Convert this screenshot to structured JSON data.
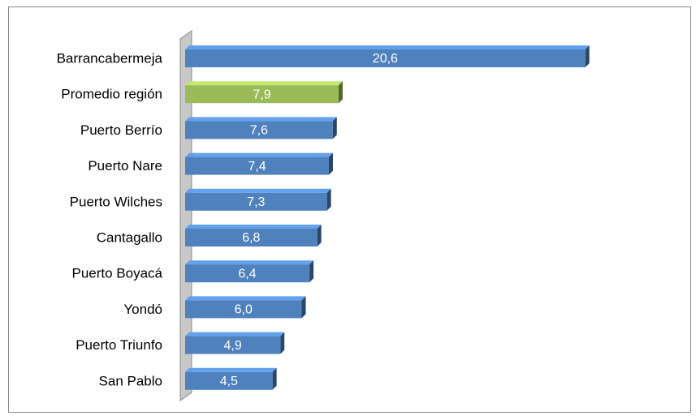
{
  "chart_data": {
    "type": "bar",
    "orientation": "horizontal",
    "categories": [
      "Barrancabermeja",
      "Promedio región",
      "Puerto Berrío",
      "Puerto Nare",
      "Puerto Wilches",
      "Cantagallo",
      "Puerto Boyacá",
      "Yondó",
      "Puerto Triunfo",
      "San Pablo"
    ],
    "values": [
      20.6,
      7.9,
      7.6,
      7.4,
      7.3,
      6.8,
      6.4,
      6.0,
      4.9,
      4.5
    ],
    "value_labels": [
      "20,6",
      "7,9",
      "7,6",
      "7,4",
      "7,3",
      "6,8",
      "6,4",
      "6,0",
      "4,9",
      "4,5"
    ],
    "colors": [
      "#4f81bd",
      "#9bbb59",
      "#4f81bd",
      "#4f81bd",
      "#4f81bd",
      "#4f81bd",
      "#4f81bd",
      "#4f81bd",
      "#4f81bd",
      "#4f81bd"
    ],
    "xlim": [
      0,
      25
    ]
  }
}
